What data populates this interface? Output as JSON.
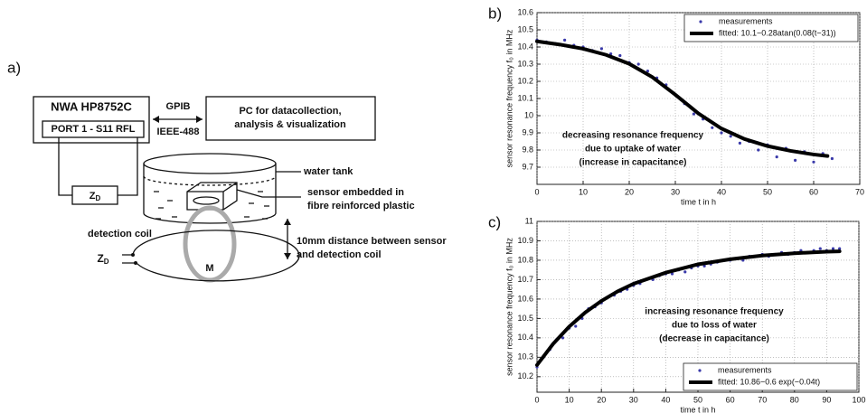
{
  "diagram": {
    "panel": "a)",
    "analyzer": "NWA HP8752C",
    "port": "PORT 1 - S11 RFL",
    "bus_top": "GPIB",
    "bus_bottom": "IEEE-488",
    "pc": [
      "PC for datacollection,",
      "analysis & visualization"
    ],
    "impedance": {
      "main": "Z",
      "sub": "D"
    },
    "terminal": {
      "main": "Z",
      "sub": "D"
    },
    "water_tank": "water tank",
    "sensor": [
      "sensor embedded in",
      "fibre reinforced plastic"
    ],
    "detection_coil": "detection coil",
    "mutual": "M",
    "distance": [
      "10mm distance between sensor",
      "and detection coil"
    ]
  },
  "chart_data": [
    {
      "type": "scatter",
      "panel": "b)",
      "x_label": "time t in h",
      "y_label": "sensor resonance frequency f₀ in MHz",
      "annotation": [
        "decreasing resonance frequency",
        "due to uptake of water",
        "(increase in capacitance)"
      ],
      "xlim": [
        0,
        70
      ],
      "xticks": [
        0,
        10,
        20,
        30,
        40,
        50,
        60,
        70
      ],
      "ylim": [
        9.6,
        10.6
      ],
      "yticks": [
        9.7,
        9.8,
        9.9,
        10,
        10.1,
        10.2,
        10.3,
        10.4,
        10.5,
        10.6
      ],
      "grid": true,
      "legend": "upper right",
      "series": [
        {
          "name": "measurements",
          "style": "points",
          "color": "#3a3aaa",
          "x": [
            0,
            2,
            4,
            6,
            8,
            10,
            12,
            14,
            16,
            18,
            20,
            22,
            24,
            26,
            28,
            30,
            32,
            34,
            36,
            38,
            40,
            42,
            44,
            46,
            48,
            50,
            52,
            54,
            56,
            58,
            60,
            62,
            64
          ],
          "values": [
            10.44,
            10.43,
            10.42,
            10.44,
            10.41,
            10.4,
            10.38,
            10.39,
            10.36,
            10.35,
            10.31,
            10.3,
            10.26,
            10.22,
            10.18,
            10.12,
            10.07,
            10.01,
            9.98,
            9.93,
            9.9,
            9.88,
            9.84,
            9.85,
            9.8,
            9.83,
            9.76,
            9.81,
            9.74,
            9.79,
            9.73,
            9.78,
            9.75
          ]
        },
        {
          "name": "fitted: 10.1−0.28atan(0.08(t−31))",
          "style": "line",
          "color": "#000000",
          "x": [
            0,
            5,
            10,
            15,
            20,
            25,
            30,
            35,
            40,
            45,
            50,
            55,
            60,
            63
          ],
          "values": [
            10.433,
            10.414,
            10.39,
            10.354,
            10.302,
            10.225,
            10.122,
            10.013,
            9.925,
            9.864,
            9.823,
            9.795,
            9.774,
            9.765
          ]
        }
      ]
    },
    {
      "type": "scatter",
      "panel": "c)",
      "x_label": "time t in h",
      "y_label": "sensor resonance frequency f₀ in MHz",
      "annotation": [
        "increasing resonance frequency",
        "due to loss of water",
        "(decrease in capacitance)"
      ],
      "xlim": [
        0,
        100
      ],
      "xticks": [
        0,
        10,
        20,
        30,
        40,
        50,
        60,
        70,
        80,
        90,
        100
      ],
      "ylim": [
        10.12,
        11
      ],
      "yticks": [
        10.2,
        10.3,
        10.4,
        10.5,
        10.6,
        10.7,
        10.8,
        10.9,
        11
      ],
      "grid": true,
      "legend": "lower right",
      "series": [
        {
          "name": "measurements",
          "style": "points",
          "color": "#3a3aaa",
          "x": [
            0,
            2,
            4,
            6,
            8,
            10,
            12,
            14,
            16,
            18,
            20,
            22,
            24,
            26,
            28,
            30,
            32,
            34,
            36,
            38,
            40,
            42,
            44,
            46,
            48,
            50,
            52,
            54,
            56,
            58,
            60,
            62,
            64,
            66,
            68,
            70,
            72,
            74,
            76,
            78,
            80,
            82,
            84,
            86,
            88,
            90,
            92,
            94
          ],
          "values": [
            10.25,
            10.3,
            10.34,
            10.39,
            10.4,
            10.45,
            10.46,
            10.5,
            10.55,
            10.56,
            10.58,
            10.61,
            10.62,
            10.64,
            10.65,
            10.67,
            10.68,
            10.7,
            10.7,
            10.72,
            10.73,
            10.73,
            10.75,
            10.74,
            10.76,
            10.77,
            10.77,
            10.78,
            10.79,
            10.8,
            10.8,
            10.81,
            10.8,
            10.82,
            10.82,
            10.83,
            10.82,
            10.83,
            10.84,
            10.83,
            10.84,
            10.85,
            10.84,
            10.85,
            10.86,
            10.85,
            10.86,
            10.86
          ]
        },
        {
          "name": "fitted: 10.86−0.6 exp(−0.04t)",
          "style": "line",
          "color": "#000000",
          "x": [
            0,
            5,
            10,
            15,
            20,
            25,
            30,
            40,
            50,
            60,
            70,
            80,
            90,
            94
          ],
          "values": [
            10.26,
            10.369,
            10.458,
            10.531,
            10.59,
            10.639,
            10.679,
            10.736,
            10.779,
            10.805,
            10.824,
            10.836,
            10.844,
            10.846
          ]
        }
      ]
    }
  ]
}
